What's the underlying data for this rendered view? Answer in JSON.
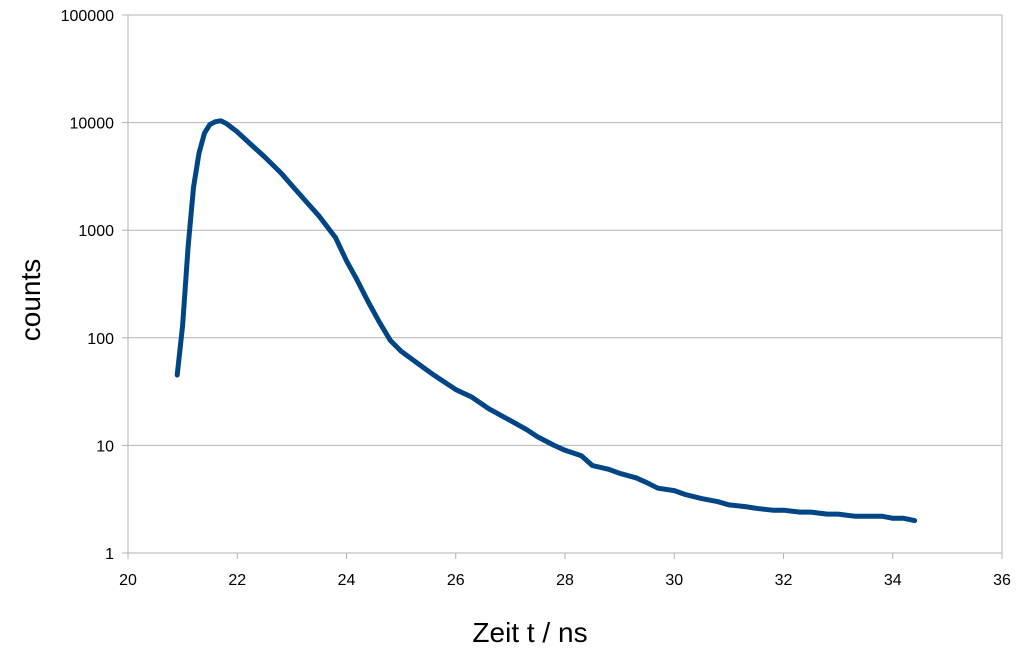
{
  "chart_data": {
    "type": "line",
    "title": "",
    "xlabel": "Zeit t / ns",
    "ylabel": "counts",
    "xlim": [
      20,
      36
    ],
    "ylim": [
      1,
      100000
    ],
    "yscale": "log",
    "x_ticks": [
      20,
      22,
      24,
      26,
      28,
      30,
      32,
      34,
      36
    ],
    "x_tick_labels": [
      "20",
      "22",
      "24",
      "26",
      "28",
      "30",
      "32",
      "34",
      "36"
    ],
    "y_ticks": [
      1,
      10,
      100,
      1000,
      10000,
      100000
    ],
    "y_tick_labels": [
      "1",
      "10",
      "100",
      "1000",
      "10000",
      "100000"
    ],
    "grid": "horizontal",
    "legend": "none",
    "series_color": "#004586",
    "series": [
      {
        "x": [
          20.9,
          21.0,
          21.1,
          21.2,
          21.3,
          21.4,
          21.5,
          21.6,
          21.7,
          21.8,
          22.0,
          22.2,
          22.5,
          22.8,
          23.0,
          23.3,
          23.5,
          23.8,
          24.0,
          24.2,
          24.4,
          24.6,
          24.8,
          25.0,
          25.3,
          25.6,
          26.0,
          26.3,
          26.6,
          27.0,
          27.3,
          27.5,
          27.8,
          28.0,
          28.3,
          28.5,
          28.8,
          29.0,
          29.3,
          29.5,
          29.7,
          30.0,
          30.2,
          30.5,
          30.8,
          31.0,
          31.3,
          31.5,
          31.8,
          32.0,
          32.3,
          32.5,
          32.8,
          33.0,
          33.3,
          33.5,
          33.8,
          34.0,
          34.2,
          34.4
        ],
        "y": [
          45,
          130,
          700,
          2500,
          5200,
          8000,
          9600,
          10200,
          10400,
          9800,
          8200,
          6600,
          4800,
          3400,
          2600,
          1750,
          1350,
          850,
          520,
          340,
          215,
          140,
          95,
          75,
          58,
          45,
          33,
          28,
          22,
          17,
          14,
          12,
          10,
          9,
          8,
          6.5,
          6,
          5.5,
          5,
          4.5,
          4,
          3.8,
          3.5,
          3.2,
          3,
          2.8,
          2.7,
          2.6,
          2.5,
          2.5,
          2.4,
          2.4,
          2.3,
          2.3,
          2.2,
          2.2,
          2.2,
          2.1,
          2.1,
          2
        ]
      }
    ]
  }
}
